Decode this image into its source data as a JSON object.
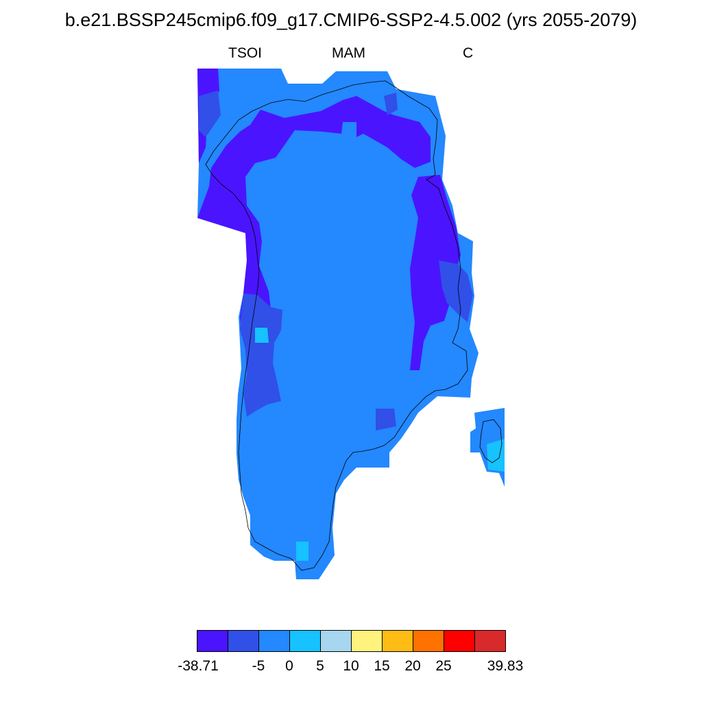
{
  "title": "b.e21.BSSP245cmip6.f09_g17.CMIP6-SSP2-4.5.002 (yrs 2055-2079)",
  "subtitle": {
    "left": "TSOI",
    "center": "MAM",
    "right": "C"
  },
  "colorbar": {
    "colors": [
      "#4a14ff",
      "#3050e8",
      "#2488ff",
      "#16c2ff",
      "#a6d6f0",
      "#fff37e",
      "#ffbc14",
      "#ff7200",
      "#ff0000",
      "#d82a2a"
    ],
    "labels": [
      "-38.71",
      "-5",
      "0",
      "5",
      "10",
      "15",
      "20",
      "25",
      "39.83"
    ]
  }
}
